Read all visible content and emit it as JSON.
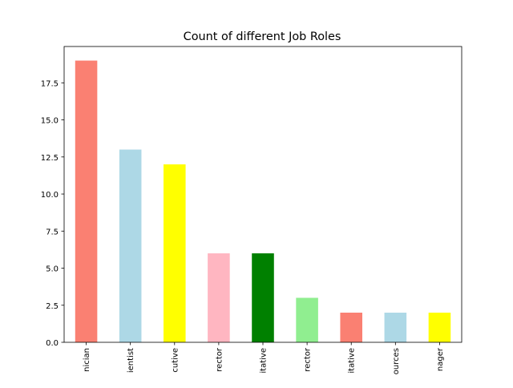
{
  "chart_data": {
    "type": "bar",
    "title": "Count of different Job Roles",
    "xlabel": "",
    "ylabel": "",
    "categories": [
      "nician",
      "ientist",
      "cutive",
      "rector",
      "itative",
      "rector",
      "itative",
      "ources",
      "nager"
    ],
    "values": [
      19,
      13,
      12,
      6,
      6,
      3,
      2,
      2,
      2
    ],
    "colors": [
      "#fa8072",
      "#add8e6",
      "#ffff00",
      "#ffb6c1",
      "#008000",
      "#90ee90",
      "#fa8072",
      "#add8e6",
      "#ffff00"
    ],
    "ylim": [
      0,
      19.95
    ],
    "yticks": [
      0.0,
      2.5,
      5.0,
      7.5,
      10.0,
      12.5,
      15.0,
      17.5
    ],
    "ytick_labels": [
      "0.0",
      "2.5",
      "5.0",
      "7.5",
      "10.0",
      "12.5",
      "15.0",
      "17.5"
    ],
    "grid": false,
    "legend": "none"
  }
}
